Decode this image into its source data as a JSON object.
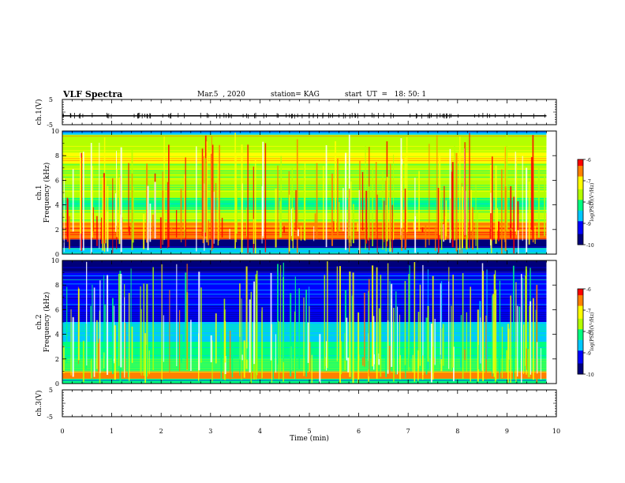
{
  "header": {
    "title": "VLF Spectra",
    "date": "Mar.5  , 2020",
    "station": "station= KAG",
    "start": "start  UT  =   18: 50: 1"
  },
  "colors": {
    "colormap": [
      "#00007a",
      "#0000ff",
      "#00c8ff",
      "#00ff80",
      "#b4ff00",
      "#ffff00",
      "#ff8000",
      "#ff0000",
      "#ffffff"
    ]
  },
  "chart_data": [
    {
      "type": "line",
      "panel": "ch1-waveform",
      "ylabel": "ch.1(V)",
      "ylim": [
        -5,
        5
      ],
      "yticks": [
        "5",
        "-5"
      ],
      "xlim": [
        0,
        10
      ],
      "description_values": {
        "baseline": -1.5
      }
    },
    {
      "type": "heatmap",
      "panel": "ch1-spectrogram",
      "ylabel_top": "ch.1",
      "ylabel": "Frequency (kHz)",
      "ylim": [
        0,
        10
      ],
      "yticks": [
        "0",
        "2",
        "4",
        "6",
        "8",
        "10"
      ],
      "xlim": [
        0,
        10
      ],
      "x_data_end": 9.8,
      "bands": [
        {
          "from": 0,
          "to": 0.5,
          "level": 0.35
        },
        {
          "from": 0.5,
          "to": 1.2,
          "level": 0.05
        },
        {
          "from": 1.2,
          "to": 2.6,
          "level": 0.8
        },
        {
          "from": 2.6,
          "to": 3.6,
          "level": 0.6
        },
        {
          "from": 3.6,
          "to": 4.6,
          "level": 0.45
        },
        {
          "from": 4.6,
          "to": 6.0,
          "level": 0.55
        },
        {
          "from": 6.0,
          "to": 7.4,
          "level": 0.5
        },
        {
          "from": 7.4,
          "to": 8.3,
          "level": 0.7
        },
        {
          "from": 8.3,
          "to": 9.7,
          "level": 0.62
        },
        {
          "from": 9.7,
          "to": 10,
          "level": 0.3
        }
      ],
      "colorbar": {
        "label": "log(PSD)(V²/Hz)",
        "range": [
          -10,
          -6
        ],
        "ticks": [
          "-6",
          "-7",
          "-8",
          "-9",
          "-10"
        ]
      }
    },
    {
      "type": "heatmap",
      "panel": "ch2-spectrogram",
      "ylabel_top": "ch.2",
      "ylabel": "Frequency (kHz)",
      "ylim": [
        0,
        10
      ],
      "yticks": [
        "0",
        "2",
        "4",
        "6",
        "8",
        "10"
      ],
      "xlim": [
        0,
        10
      ],
      "x_data_end": 9.8,
      "bands": [
        {
          "from": 0,
          "to": 0.4,
          "level": 0.4
        },
        {
          "from": 0.4,
          "to": 1.0,
          "level": 0.75
        },
        {
          "from": 1.0,
          "to": 2.0,
          "level": 0.45
        },
        {
          "from": 2.0,
          "to": 3.4,
          "level": 0.4
        },
        {
          "from": 3.4,
          "to": 5.0,
          "level": 0.35
        },
        {
          "from": 5.0,
          "to": 7.0,
          "level": 0.18
        },
        {
          "from": 7.0,
          "to": 9.0,
          "level": 0.22
        },
        {
          "from": 9.0,
          "to": 10,
          "level": 0.08
        }
      ],
      "colorbar": {
        "label": "log(PSD)(V²/Hz)",
        "range": [
          -10,
          -6
        ],
        "ticks": [
          "-6",
          "-7",
          "-8",
          "-9",
          "-10"
        ]
      }
    },
    {
      "type": "line",
      "panel": "ch3-waveform",
      "ylabel": "ch.3(V)",
      "ylim": [
        -5,
        5
      ],
      "yticks": [
        "5",
        "-5"
      ],
      "xlim": [
        0,
        10
      ],
      "xlabel": "Time  (min)",
      "xticks": [
        "0",
        "1",
        "2",
        "3",
        "4",
        "5",
        "6",
        "7",
        "8",
        "9",
        "10"
      ]
    }
  ]
}
